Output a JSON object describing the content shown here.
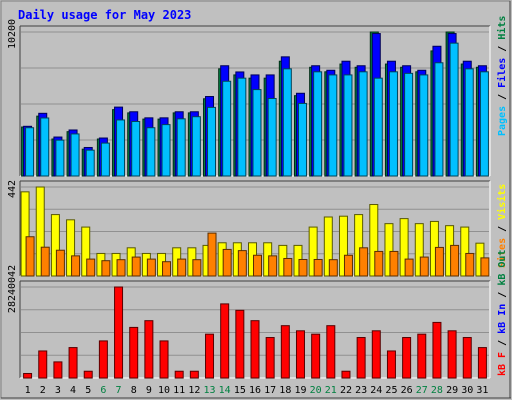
{
  "chart_data": {
    "type": "bar",
    "title": "Daily usage for May 2023",
    "categories": [
      "1",
      "2",
      "3",
      "4",
      "5",
      "6",
      "7",
      "8",
      "9",
      "10",
      "11",
      "12",
      "13",
      "14",
      "15",
      "16",
      "17",
      "18",
      "19",
      "20",
      "21",
      "22",
      "23",
      "24",
      "25",
      "26",
      "27",
      "28",
      "29",
      "30",
      "31"
    ],
    "weekend_categories": [
      "6",
      "7",
      "13",
      "14",
      "20",
      "21",
      "27",
      "28"
    ],
    "panels": [
      {
        "name": "hits",
        "ymax_label": "10200",
        "ymax": 10200,
        "series": [
          {
            "name": "Hits",
            "color": "#008040",
            "values": [
              3470,
              4240,
              2620,
              3140,
              1900,
              2620,
              4700,
              4470,
              4030,
              4030,
              4470,
              4470,
              5470,
              7590,
              7160,
              6930,
              6930,
              8130,
              5690,
              7700,
              7380,
              7930,
              7700,
              10200,
              7930,
              7700,
              7380,
              8860,
              10200,
              7930,
              7700
            ]
          },
          {
            "name": "Files",
            "color": "#0000ff",
            "values": [
              3520,
              4440,
              2760,
              3260,
              2020,
              2690,
              4880,
              4550,
              4120,
              4120,
              4550,
              4550,
              5630,
              7810,
              7370,
              7160,
              7160,
              8440,
              5860,
              7810,
              7490,
              8130,
              7810,
              10090,
              8130,
              7810,
              7490,
              9190,
              10090,
              8130,
              7810
            ]
          },
          {
            "name": "Pages",
            "color": "#00c0ff",
            "values": [
              3420,
              4110,
              2540,
              2980,
              1830,
              2330,
              3970,
              3860,
              3420,
              3640,
              4050,
              4200,
              4860,
              6710,
              6930,
              6120,
              5490,
              7590,
              5140,
              7380,
              7160,
              7160,
              7380,
              6930,
              7380,
              7270,
              7160,
              8020,
              9410,
              7590,
              7380
            ]
          }
        ]
      },
      {
        "name": "visits",
        "ymax_label": "442",
        "ymax": 442,
        "series": [
          {
            "name": "Visits",
            "color": "#ffff00",
            "values": [
              418,
              442,
              305,
              279,
              243,
              112,
              112,
              140,
              112,
              112,
              140,
              140,
              152,
              165,
              165,
              165,
              165,
              152,
              152,
              243,
              293,
              297,
              305,
              355,
              260,
              285,
              260,
              271,
              250,
              243,
              163
            ]
          },
          {
            "name": "Sites",
            "color": "#ff8000",
            "values": [
              195,
              143,
              128,
              100,
              84,
              76,
              81,
              94,
              84,
              71,
              84,
              81,
              213,
              132,
              126,
              103,
              100,
              87,
              82,
              82,
              81,
              103,
              140,
              122,
              122,
              84,
              94,
              142,
              152,
              112,
              90
            ]
          }
        ]
      },
      {
        "name": "kbytes",
        "ymax_label": "28240042",
        "ymax": 28240042,
        "series": [
          {
            "name": "KBytes",
            "color": "#ff0000",
            "values": [
              1400000,
              8390000,
              5000000,
              9440000,
              2100000,
              11510000,
              28240042,
              15700000,
              17790000,
              11510000,
              2100000,
              2100000,
              13600000,
              23000000,
              21000000,
              17790000,
              12560000,
              16240000,
              14650000,
              13600000,
              16240000,
              2100000,
              12560000,
              14650000,
              8390000,
              12560000,
              13600000,
              17250000,
              14650000,
              12560000,
              9440000
            ]
          }
        ]
      }
    ],
    "legend_top": [
      "Pages",
      "Files",
      "Hits"
    ],
    "legend_middle": [
      "Sites",
      "Visits"
    ],
    "legend_bottom": [
      "kB F",
      "kB In",
      "kB Out"
    ],
    "legend_top_colors": [
      "#00c0ff",
      "#0000ff",
      "#008040"
    ],
    "legend_middle_colors": [
      "#ff8000",
      "#ffff00"
    ],
    "legend_bottom_colors": [
      "#ff0000",
      "#0000ff",
      "#008040"
    ],
    "weekday_label_color": "#000000",
    "weekend_label_color": "#008040",
    "title_color": "#0000ff",
    "background": "#c0c0c0"
  }
}
